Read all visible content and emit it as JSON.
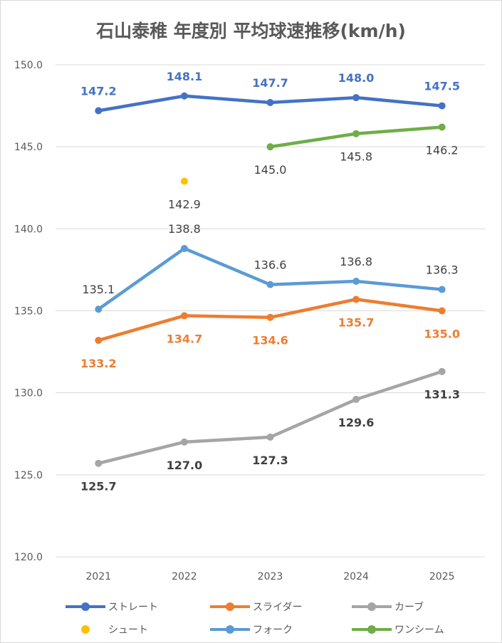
{
  "chart_data": {
    "type": "line",
    "title": "石山泰稚 年度別 平均球速推移(km/h)",
    "xlabel": "",
    "ylabel": "",
    "categories": [
      "2021",
      "2022",
      "2023",
      "2024",
      "2025"
    ],
    "ylim": [
      120.0,
      150.0
    ],
    "yticks": [
      "120.0",
      "125.0",
      "130.0",
      "135.0",
      "140.0",
      "145.0",
      "150.0"
    ],
    "grid": true,
    "legend_position": "bottom",
    "series": [
      {
        "name": "ストレート",
        "color": "#4472c4",
        "values": [
          147.2,
          148.1,
          147.7,
          148.0,
          147.5
        ],
        "labels": [
          "147.2",
          "148.1",
          "147.7",
          "148.0",
          "147.5"
        ],
        "label_pos": "above",
        "label_bold": true
      },
      {
        "name": "スライダー",
        "color": "#ed7d31",
        "values": [
          133.2,
          134.7,
          134.6,
          135.7,
          135.0
        ],
        "labels": [
          "133.2",
          "134.7",
          "134.6",
          "135.7",
          "135.0"
        ],
        "label_pos": "below",
        "label_bold": true
      },
      {
        "name": "カーブ",
        "color": "#a5a5a5",
        "values": [
          125.7,
          127.0,
          127.3,
          129.6,
          131.3
        ],
        "labels": [
          "125.7",
          "127.0",
          "127.3",
          "129.6",
          "131.3"
        ],
        "label_pos": "below",
        "label_bold": true,
        "label_color": "#404040"
      },
      {
        "name": "シュート",
        "color": "#ffc000",
        "values": [
          null,
          142.9,
          null,
          null,
          null
        ],
        "labels": [
          null,
          "142.9",
          null,
          null,
          null
        ],
        "label_pos": "below",
        "label_bold": false,
        "label_color": "#404040"
      },
      {
        "name": "フォーク",
        "color": "#5b9bd5",
        "values": [
          135.1,
          138.8,
          136.6,
          136.8,
          136.3
        ],
        "labels": [
          "135.1",
          "138.8",
          "136.6",
          "136.8",
          "136.3"
        ],
        "label_pos": "above",
        "label_bold": false,
        "label_color": "#404040"
      },
      {
        "name": "ワンシーム",
        "color": "#70ad47",
        "values": [
          null,
          null,
          145.0,
          145.8,
          146.2
        ],
        "labels": [
          null,
          null,
          "145.0",
          "145.8",
          "146.2"
        ],
        "label_pos": "below",
        "label_bold": false,
        "label_color": "#404040"
      }
    ]
  }
}
